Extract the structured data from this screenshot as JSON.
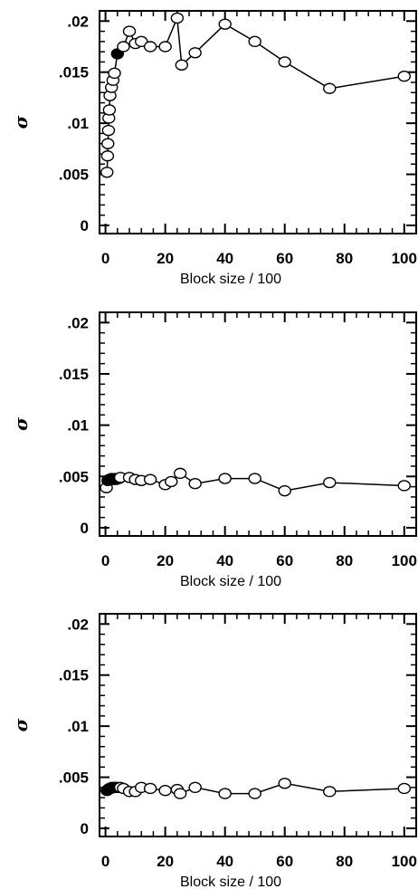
{
  "chart_data": [
    {
      "type": "scatter",
      "xlabel": "Block size / 100",
      "ylabel": "σ",
      "xlim": [
        -2,
        104
      ],
      "ylim": [
        -0.0008,
        0.021
      ],
      "xticks": [
        0,
        20,
        40,
        60,
        80,
        100
      ],
      "yticks": [
        0,
        0.005,
        0.01,
        0.015,
        0.02
      ],
      "xtick_labels": [
        "0",
        "20",
        "40",
        "60",
        "80",
        "100"
      ],
      "ytick_labels": [
        "0",
        ".005",
        ".01",
        ".015",
        ".02"
      ],
      "grid": false,
      "series": [
        {
          "connected": true,
          "open": [
            [
              0.5,
              0.0052
            ],
            [
              0.7,
              0.0068
            ],
            [
              0.8,
              0.008
            ],
            [
              1.0,
              0.0093
            ],
            [
              1.1,
              0.0105
            ],
            [
              1.3,
              0.0113
            ],
            [
              1.5,
              0.0127
            ],
            [
              2,
              0.0135
            ],
            [
              2.5,
              0.0142
            ],
            [
              3,
              0.0149
            ],
            [
              6,
              0.0175
            ],
            [
              8,
              0.019
            ],
            [
              10,
              0.0178
            ],
            [
              12,
              0.018
            ],
            [
              15,
              0.0175
            ],
            [
              20,
              0.0175
            ],
            [
              24,
              0.0203
            ],
            [
              25.5,
              0.0157
            ],
            [
              30,
              0.0169
            ],
            [
              40,
              0.0197
            ],
            [
              50,
              0.018
            ],
            [
              60,
              0.016
            ],
            [
              75,
              0.0134
            ],
            [
              100,
              0.0146
            ]
          ],
          "filled": [
            [
              4,
              0.0168
            ]
          ]
        }
      ]
    },
    {
      "type": "scatter",
      "xlabel": "Block size / 100",
      "ylabel": "σ",
      "xlim": [
        -2,
        104
      ],
      "ylim": [
        -0.0008,
        0.021
      ],
      "xticks": [
        0,
        20,
        40,
        60,
        80,
        100
      ],
      "yticks": [
        0,
        0.005,
        0.01,
        0.015,
        0.02
      ],
      "xtick_labels": [
        "0",
        "20",
        "40",
        "60",
        "80",
        "100"
      ],
      "ytick_labels": [
        "0",
        ".005",
        ".01",
        ".015",
        ".02"
      ],
      "grid": false,
      "series": [
        {
          "connected": true,
          "open": [
            [
              0.3,
              0.0039
            ],
            [
              5,
              0.0049
            ],
            [
              8,
              0.0049
            ],
            [
              10,
              0.0047
            ],
            [
              12,
              0.0046
            ],
            [
              15,
              0.0047
            ],
            [
              20,
              0.0042
            ],
            [
              22,
              0.0045
            ],
            [
              25,
              0.0053
            ],
            [
              30,
              0.0043
            ],
            [
              40,
              0.0048
            ],
            [
              50,
              0.0048
            ],
            [
              60,
              0.0036
            ],
            [
              75,
              0.0044
            ],
            [
              100,
              0.0041
            ]
          ],
          "filled": [
            [
              0.8,
              0.0046
            ],
            [
              1.2,
              0.0047
            ],
            [
              1.6,
              0.0047
            ],
            [
              2,
              0.0048
            ],
            [
              2.5,
              0.0047
            ],
            [
              3,
              0.0048
            ],
            [
              3.5,
              0.0047
            ],
            [
              4,
              0.0048
            ],
            [
              4.5,
              0.0048
            ]
          ]
        }
      ]
    },
    {
      "type": "scatter",
      "xlabel": "Block size / 100",
      "ylabel": "σ",
      "xlim": [
        -2,
        104
      ],
      "ylim": [
        -0.0008,
        0.021
      ],
      "xticks": [
        0,
        20,
        40,
        60,
        80,
        100
      ],
      "yticks": [
        0,
        0.005,
        0.01,
        0.015,
        0.02
      ],
      "xtick_labels": [
        "0",
        "20",
        "40",
        "60",
        "80",
        "100"
      ],
      "ytick_labels": [
        "0",
        ".005",
        ".01",
        ".015",
        ".02"
      ],
      "grid": false,
      "series": [
        {
          "connected": true,
          "open": [
            [
              5,
              0.004
            ],
            [
              6,
              0.0039
            ],
            [
              8,
              0.0036
            ],
            [
              10,
              0.0036
            ],
            [
              12,
              0.004
            ],
            [
              15,
              0.0039
            ],
            [
              20,
              0.0037
            ],
            [
              24,
              0.0038
            ],
            [
              25,
              0.0034
            ],
            [
              30,
              0.004
            ],
            [
              40,
              0.0034
            ],
            [
              50,
              0.0034
            ],
            [
              60,
              0.0044
            ],
            [
              75,
              0.0036
            ],
            [
              100,
              0.0039
            ]
          ],
          "filled": [
            [
              0.5,
              0.0037
            ],
            [
              0.9,
              0.0038
            ],
            [
              1.3,
              0.0039
            ],
            [
              1.7,
              0.0039
            ],
            [
              2.1,
              0.004
            ],
            [
              2.5,
              0.004
            ],
            [
              3,
              0.004
            ],
            [
              3.5,
              0.004
            ],
            [
              4,
              0.004
            ]
          ]
        }
      ]
    }
  ]
}
